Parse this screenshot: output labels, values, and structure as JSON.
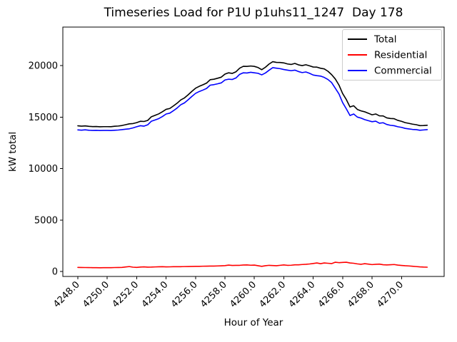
{
  "chart_data": {
    "type": "line",
    "title": "Timeseries Load for P1U p1uhs11_1247  Day 178",
    "xlabel": "Hour of Year",
    "ylabel": "kW total",
    "grid": false,
    "legend_position": "upper right",
    "xlim": [
      4246.98,
      4272.9
    ],
    "ylim": [
      -480,
      23740
    ],
    "x_start": 4248.0,
    "x_step": 0.25,
    "x_tick_values": [
      4248,
      4250,
      4252,
      4254,
      4256,
      4258,
      4260,
      4262,
      4264,
      4266,
      4268,
      4270
    ],
    "x_tick_labels": [
      "4248.0",
      "4250.0",
      "4252.0",
      "4254.0",
      "4256.0",
      "4258.0",
      "4260.0",
      "4262.0",
      "4264.0",
      "4266.0",
      "4268.0",
      "4270.0"
    ],
    "y_tick_values": [
      0,
      5000,
      10000,
      15000,
      20000
    ],
    "y_tick_labels": [
      "0",
      "5000",
      "10000",
      "15000",
      "20000"
    ],
    "series": [
      {
        "name": "Total",
        "color": "#000000",
        "values": [
          14150,
          14120,
          14145,
          14100,
          14075,
          14080,
          14055,
          14070,
          14070,
          14065,
          14105,
          14130,
          14180,
          14260,
          14340,
          14370,
          14460,
          14590,
          14570,
          14675,
          15030,
          15165,
          15310,
          15520,
          15750,
          15835,
          16085,
          16350,
          16670,
          16860,
          17165,
          17495,
          17800,
          17985,
          18135,
          18300,
          18630,
          18675,
          18770,
          18875,
          19170,
          19300,
          19240,
          19400,
          19750,
          19930,
          19920,
          19960,
          19920,
          19810,
          19600,
          19840,
          20150,
          20380,
          20310,
          20300,
          20260,
          20160,
          20110,
          20210,
          20070,
          20000,
          20080,
          19980,
          19860,
          19850,
          19740,
          19680,
          19450,
          19120,
          18700,
          18110,
          17280,
          16700,
          15980,
          16100,
          15740,
          15600,
          15510,
          15370,
          15220,
          15300,
          15120,
          15110,
          14920,
          14860,
          14840,
          14680,
          14590,
          14460,
          14390,
          14310,
          14260,
          14170,
          14180,
          14200
        ]
      },
      {
        "name": "Residential",
        "color": "#ff0000",
        "values": [
          400,
          390,
          385,
          380,
          375,
          370,
          365,
          370,
          370,
          375,
          385,
          390,
          400,
          440,
          480,
          420,
          400,
          430,
          450,
          425,
          430,
          445,
          460,
          470,
          450,
          455,
          465,
          470,
          470,
          480,
          485,
          495,
          500,
          505,
          515,
          520,
          530,
          525,
          540,
          555,
          570,
          620,
          590,
          600,
          600,
          630,
          640,
          610,
          620,
          560,
          500,
          560,
          600,
          580,
          560,
          600,
          640,
          600,
          610,
          650,
          650,
          680,
          700,
          730,
          780,
          830,
          760,
          830,
          800,
          770,
          900,
          860,
          880,
          900,
          830,
          800,
          740,
          700,
          760,
          720,
          670,
          700,
          720,
          660,
          640,
          660,
          680,
          620,
          590,
          560,
          540,
          510,
          480,
          450,
          430,
          420
        ]
      },
      {
        "name": "Commercial",
        "color": "#0000ff",
        "values": [
          13750,
          13730,
          13760,
          13720,
          13700,
          13710,
          13690,
          13700,
          13700,
          13690,
          13720,
          13740,
          13780,
          13820,
          13860,
          13950,
          14060,
          14160,
          14120,
          14250,
          14600,
          14720,
          14850,
          15050,
          15300,
          15380,
          15620,
          15880,
          16200,
          16380,
          16680,
          17000,
          17300,
          17480,
          17620,
          17780,
          18100,
          18150,
          18230,
          18320,
          18600,
          18680,
          18650,
          18800,
          19150,
          19300,
          19280,
          19350,
          19300,
          19250,
          19100,
          19280,
          19550,
          19800,
          19750,
          19700,
          19620,
          19560,
          19500,
          19560,
          19420,
          19320,
          19380,
          19250,
          19080,
          19020,
          18980,
          18850,
          18650,
          18350,
          17800,
          17250,
          16400,
          15800,
          15150,
          15300,
          15000,
          14900,
          14750,
          14650,
          14550,
          14600,
          14400,
          14450,
          14280,
          14200,
          14160,
          14060,
          14000,
          13900,
          13850,
          13800,
          13780,
          13720,
          13750,
          13780
        ]
      }
    ]
  }
}
